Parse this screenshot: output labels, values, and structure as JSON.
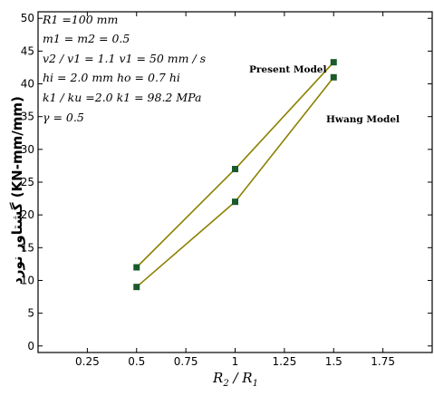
{
  "chart_data": {
    "type": "line",
    "xlabel_parts": [
      "R",
      "2",
      " / R",
      "1"
    ],
    "ylabel": "گشتاور نورد (KN-mm/mm)",
    "xlim": [
      0,
      2
    ],
    "ylim": [
      -1,
      51
    ],
    "x_ticks": [
      0.25,
      0.5,
      0.75,
      1,
      1.25,
      1.5,
      1.75
    ],
    "x_tick_labels": [
      "0.25",
      "0.5",
      "0.75",
      "1",
      "1.25",
      "1.5",
      "1.75"
    ],
    "y_ticks": [
      0,
      5,
      10,
      15,
      20,
      25,
      30,
      35,
      40,
      45,
      50
    ],
    "y_tick_labels": [
      "0",
      "5",
      "10",
      "15",
      "20",
      "25",
      "30",
      "35",
      "40",
      "45",
      "50"
    ],
    "x": [
      0.5,
      1.0,
      1.5
    ],
    "series": [
      {
        "name": "Present Model",
        "values": [
          12,
          27,
          43.3
        ]
      },
      {
        "name": "Hwang Model",
        "values": [
          9,
          22,
          41
        ]
      }
    ],
    "line_color": "#8c8000",
    "marker_color": "#1a5a2a",
    "grid": false,
    "legend": "none",
    "annotations": [
      {
        "text": "Present Model",
        "x": 1.25,
        "y": 40.7,
        "anchor": "start"
      },
      {
        "text": "Hwang Model",
        "x": 1.39,
        "y": 34.3,
        "anchor": "start"
      }
    ],
    "parameter_lines": [
      "R1 =100 mm",
      "m1 = m2 = 0.5",
      "v2 / v1 = 1.1    v1 = 50 mm / s",
      "hi = 2.0 mm    ho = 0.7 hi",
      "k1 / ku =2.0   k1 = 98.2 MPa",
      "γ = 0.5"
    ]
  }
}
